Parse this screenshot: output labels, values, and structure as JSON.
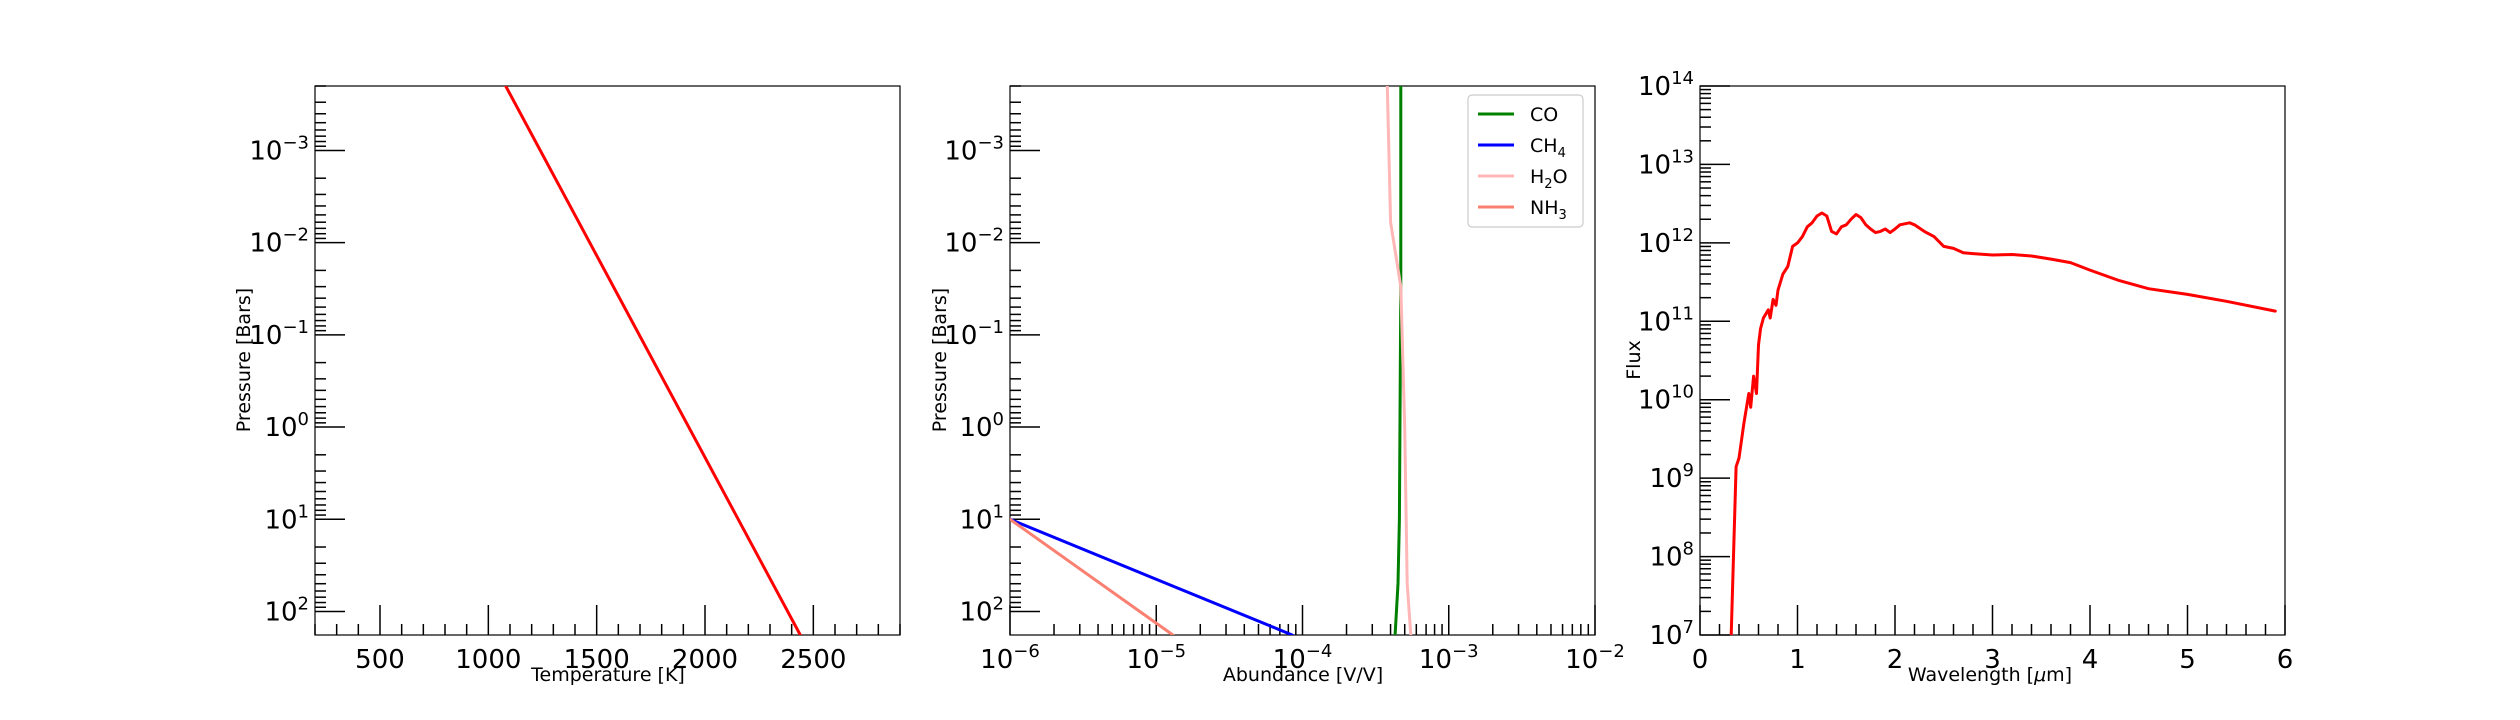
{
  "chart_data": [
    {
      "type": "line",
      "xlabel": "Temperature [K]",
      "ylabel": "Pressure [Bars]",
      "xscale": "linear",
      "yscale": "log",
      "yinverted": true,
      "xlim": [
        200,
        2900
      ],
      "ylim": [
        180,
        0.0002
      ],
      "xticks": [
        500,
        1000,
        1500,
        2000,
        2500
      ],
      "xtick_labels": [
        "500",
        "1000",
        "1500",
        "2000",
        "2500"
      ],
      "yticks_exp": [
        -3,
        -2,
        -1,
        0,
        1,
        2
      ],
      "series": [
        {
          "color": "#ff0000",
          "x": [
            1080,
            2440
          ],
          "y": [
            0.0002,
            180
          ]
        }
      ]
    },
    {
      "type": "line",
      "xlabel": "Abundance [V/V]",
      "ylabel": "Pressure [Bars]",
      "xscale": "log",
      "yscale": "log",
      "yinverted": true,
      "xlim": [
        1e-06,
        0.01
      ],
      "ylim": [
        180,
        0.0002
      ],
      "xticks_exp": [
        -6,
        -5,
        -4,
        -3,
        -2
      ],
      "yticks_exp": [
        -3,
        -2,
        -1,
        0,
        1,
        2
      ],
      "legend": {
        "placement": "top-right"
      },
      "series": [
        {
          "name": "CO",
          "color": "#008000",
          "x": [
            0.00047,
            0.00047,
            0.00046,
            0.00045,
            0.00043
          ],
          "y": [
            0.0002,
            0.03,
            10,
            50,
            180
          ]
        },
        {
          "name": "CH4",
          "color": "#0000ff",
          "x": [
            1e-06,
            8.5e-05
          ],
          "y": [
            10,
            180
          ]
        },
        {
          "name": "H2O",
          "color": "#ffb6b6",
          "x": [
            0.00038,
            0.0004,
            0.00047,
            0.0005,
            0.00052,
            0.00055
          ],
          "y": [
            0.0002,
            0.006,
            0.03,
            1,
            50,
            180
          ]
        },
        {
          "name": "NH3",
          "color": "#fa8072",
          "x": [
            1e-06,
            1.3e-05
          ],
          "y": [
            10,
            180
          ]
        }
      ]
    },
    {
      "type": "line",
      "xlabel": "Wavelength [μm]",
      "ylabel": "Flux",
      "xscale": "linear",
      "yscale": "log",
      "xlim": [
        0,
        6
      ],
      "ylim": [
        10000000.0,
        100000000000000.0
      ],
      "xticks": [
        0,
        1,
        2,
        3,
        4,
        5,
        6
      ],
      "xtick_labels": [
        "0",
        "1",
        "2",
        "3",
        "4",
        "5",
        "6"
      ],
      "yticks_exp": [
        7,
        8,
        9,
        10,
        11,
        12,
        13,
        14
      ],
      "series": [
        {
          "color": "#ff0000",
          "x": [
            0.32,
            0.37,
            0.4,
            0.45,
            0.5,
            0.52,
            0.55,
            0.58,
            0.6,
            0.62,
            0.65,
            0.7,
            0.72,
            0.75,
            0.78,
            0.8,
            0.85,
            0.9,
            0.95,
            1.0,
            1.05,
            1.1,
            1.15,
            1.2,
            1.25,
            1.3,
            1.35,
            1.4,
            1.45,
            1.5,
            1.55,
            1.6,
            1.65,
            1.7,
            1.75,
            1.8,
            1.85,
            1.9,
            1.95,
            2.0,
            2.05,
            2.1,
            2.15,
            2.2,
            2.3,
            2.4,
            2.5,
            2.6,
            2.7,
            2.8,
            3.0,
            3.2,
            3.4,
            3.6,
            3.8,
            4.0,
            4.3,
            4.6,
            5.0,
            5.4,
            5.9
          ],
          "y": [
            10000000.0,
            1400000000.0,
            1800000000.0,
            5000000000.0,
            12000000000.0,
            8000000000.0,
            20000000000.0,
            12000000000.0,
            50000000000.0,
            80000000000.0,
            110000000000.0,
            140000000000.0,
            110000000000.0,
            190000000000.0,
            160000000000.0,
            250000000000.0,
            400000000000.0,
            500000000000.0,
            900000000000.0,
            1000000000000.0,
            1200000000000.0,
            1600000000000.0,
            1800000000000.0,
            2200000000000.0,
            2400000000000.0,
            2200000000000.0,
            1400000000000.0,
            1300000000000.0,
            1600000000000.0,
            1700000000000.0,
            2000000000000.0,
            2300000000000.0,
            2100000000000.0,
            1700000000000.0,
            1500000000000.0,
            1350000000000.0,
            1400000000000.0,
            1500000000000.0,
            1350000000000.0,
            1500000000000.0,
            1700000000000.0,
            1750000000000.0,
            1800000000000.0,
            1700000000000.0,
            1400000000000.0,
            1200000000000.0,
            900000000000.0,
            850000000000.0,
            750000000000.0,
            730000000000.0,
            700000000000.0,
            710000000000.0,
            680000000000.0,
            620000000000.0,
            560000000000.0,
            450000000000.0,
            330000000000.0,
            260000000000.0,
            220000000000.0,
            180000000000.0,
            135000000000.0
          ]
        }
      ]
    }
  ]
}
